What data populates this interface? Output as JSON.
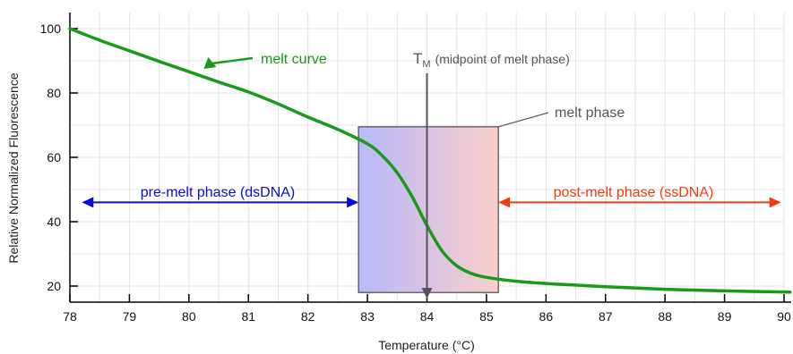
{
  "chart_data": {
    "type": "line",
    "xlabel": "Temperature (°C)",
    "ylabel": "Relative Normalized Fluorescence",
    "xlim": [
      78,
      90
    ],
    "ylim": [
      15,
      105
    ],
    "x_ticks": [
      78,
      79,
      80,
      81,
      82,
      83,
      84,
      85,
      86,
      87,
      88,
      89,
      90
    ],
    "y_ticks": [
      20,
      40,
      60,
      80,
      100
    ],
    "grid": true,
    "series": [
      {
        "name": "melt curve",
        "color": "#1a9a1a",
        "x": [
          78,
          78.5,
          79,
          79.5,
          80,
          80.5,
          81,
          81.5,
          82,
          82.5,
          83,
          83.25,
          83.5,
          83.75,
          84,
          84.25,
          84.5,
          84.75,
          85,
          85.5,
          86,
          87,
          88,
          89,
          90.1
        ],
        "y": [
          100,
          96.4,
          93.1,
          89.8,
          86.6,
          83.4,
          80.3,
          76.6,
          72.5,
          68.7,
          64.2,
          60.5,
          55.2,
          47.8,
          38.8,
          31.0,
          26.3,
          23.9,
          22.7,
          21.5,
          20.8,
          19.8,
          19.0,
          18.5,
          18.1
        ]
      }
    ],
    "annotations": {
      "melt_curve_label": "melt curve",
      "tm_label_main": "T",
      "tm_label_sub": "M",
      "tm_label_rest": "(midpoint of melt phase)",
      "tm_x": 84,
      "melt_phase_label": "melt phase",
      "melt_phase_x": [
        82.85,
        85.2
      ],
      "melt_phase_y": [
        18,
        69.5
      ],
      "pre_melt_label": "pre-melt phase (dsDNA)",
      "pre_melt_x": [
        78.2,
        82.85
      ],
      "pre_melt_y": 46,
      "post_melt_label": "post-melt phase (ssDNA)",
      "post_melt_x": [
        85.2,
        89.95
      ],
      "post_melt_y": 46
    },
    "colors": {
      "curve": "#1a9a1a",
      "pre_melt": "#0a0adc",
      "post_melt": "#f53a10",
      "tm_line": "#555555",
      "box_left": "#b9b9fb",
      "box_right": "#f9cfcb"
    }
  }
}
